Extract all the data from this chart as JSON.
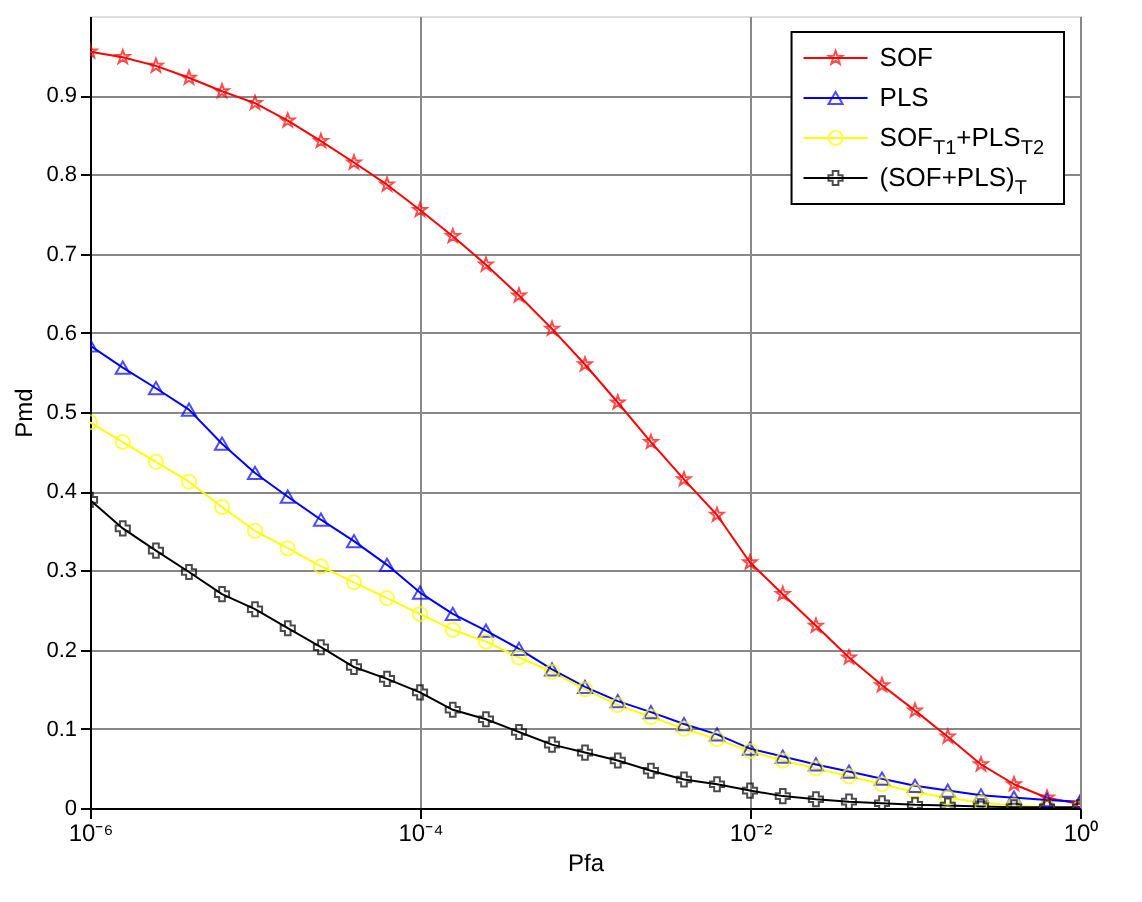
{
  "chart_data": {
    "type": "line",
    "xlabel": "Pfa",
    "ylabel": "Pmd",
    "log": "x",
    "x": [
      1e-06,
      1.58e-06,
      2.51e-06,
      3.98e-06,
      6.31e-06,
      1e-05,
      1.58e-05,
      2.51e-05,
      3.98e-05,
      6.31e-05,
      0.0001,
      0.000158,
      0.000251,
      0.000398,
      0.000631,
      0.001,
      0.00158,
      0.00251,
      0.00398,
      0.00631,
      0.01,
      0.0158,
      0.0251,
      0.0398,
      0.0631,
      0.1,
      0.158,
      0.251,
      0.398,
      0.631,
      1
    ],
    "series": [
      {
        "name": "SOF",
        "color": "#ff0000",
        "marker": "star",
        "values": [
          0.955,
          0.948,
          0.937,
          0.922,
          0.905,
          0.89,
          0.868,
          0.842,
          0.815,
          0.787,
          0.755,
          0.722,
          0.686,
          0.647,
          0.605,
          0.56,
          0.512,
          0.462,
          0.415,
          0.37,
          0.31,
          0.27,
          0.23,
          0.19,
          0.155,
          0.123,
          0.09,
          0.055,
          0.03,
          0.013,
          0.005
        ]
      },
      {
        "name": "PLS",
        "color": "#0000ff",
        "marker": "triangle",
        "values": [
          0.584,
          0.556,
          0.53,
          0.503,
          0.46,
          0.423,
          0.393,
          0.364,
          0.337,
          0.307,
          0.272,
          0.245,
          0.224,
          0.201,
          0.175,
          0.153,
          0.135,
          0.121,
          0.106,
          0.093,
          0.075,
          0.065,
          0.055,
          0.046,
          0.037,
          0.028,
          0.022,
          0.016,
          0.013,
          0.01,
          0.008
        ]
      },
      {
        "name": "SOF$_{T1}$+PLS$_{T2}$",
        "color": "#ffff00",
        "marker": "circle",
        "values": [
          0.487,
          0.462,
          0.437,
          0.412,
          0.38,
          0.35,
          0.328,
          0.305,
          0.285,
          0.265,
          0.245,
          0.225,
          0.21,
          0.19,
          0.172,
          0.15,
          0.13,
          0.115,
          0.1,
          0.087,
          0.072,
          0.06,
          0.05,
          0.04,
          0.03,
          0.02,
          0.013,
          0.007,
          0.003,
          0.001,
          0
        ]
      },
      {
        "name": "(SOF+PLS)$_{T}$",
        "color": "#000000",
        "marker": "cross",
        "values": [
          0.389,
          0.353,
          0.325,
          0.298,
          0.27,
          0.251,
          0.227,
          0.203,
          0.178,
          0.163,
          0.146,
          0.124,
          0.112,
          0.096,
          0.08,
          0.07,
          0.06,
          0.047,
          0.036,
          0.03,
          0.022,
          0.015,
          0.011,
          0.008,
          0.006,
          0.004,
          0.003,
          0.002,
          0.001,
          0.001,
          0.001
        ]
      }
    ],
    "xlim": [
      1e-06,
      1
    ],
    "xticks": [
      {
        "value": 1e-06,
        "label": "10⁻⁶"
      },
      {
        "value": 0.0001,
        "label": "10⁻⁴"
      },
      {
        "value": 0.01,
        "label": "10⁻²"
      },
      {
        "value": 1,
        "label": "10⁰"
      }
    ],
    "ylim": [
      0,
      1
    ],
    "yticks": [
      0,
      0.1,
      0.2,
      0.3,
      0.4,
      0.5,
      0.6,
      0.7,
      0.8,
      0.9
    ],
    "grid": true,
    "legend": "top right",
    "line_style": "solid"
  }
}
